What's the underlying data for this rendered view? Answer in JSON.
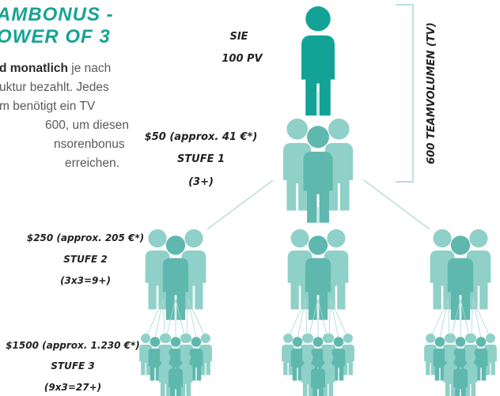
{
  "title": {
    "lines": [
      "AMBONUS -",
      "OWER OF 3"
    ]
  },
  "intro": {
    "bold": "d monatlich",
    "lines": [
      " je nach",
      "uktur bezahlt. Jedes",
      "m benötigt ein TV",
      "600, um diesen",
      "nsorenbonus",
      "erreichen."
    ]
  },
  "top": {
    "name": "SIE",
    "volume": "100 PV"
  },
  "levels": [
    {
      "bonus": "$50 (approx. 41 €*)",
      "stage": "STUFE 1",
      "count": "(3+)"
    },
    {
      "bonus": "$250 (approx. 205 €*)",
      "stage": "STUFE 2",
      "count": "(3x3=9+)"
    },
    {
      "bonus": "$1500 (approx. 1.230 €*)",
      "stage": "STUFE 3",
      "count": "(9x3=27+)"
    }
  ],
  "team_volume": "600 TEAMVOLUMEN (TV)"
}
